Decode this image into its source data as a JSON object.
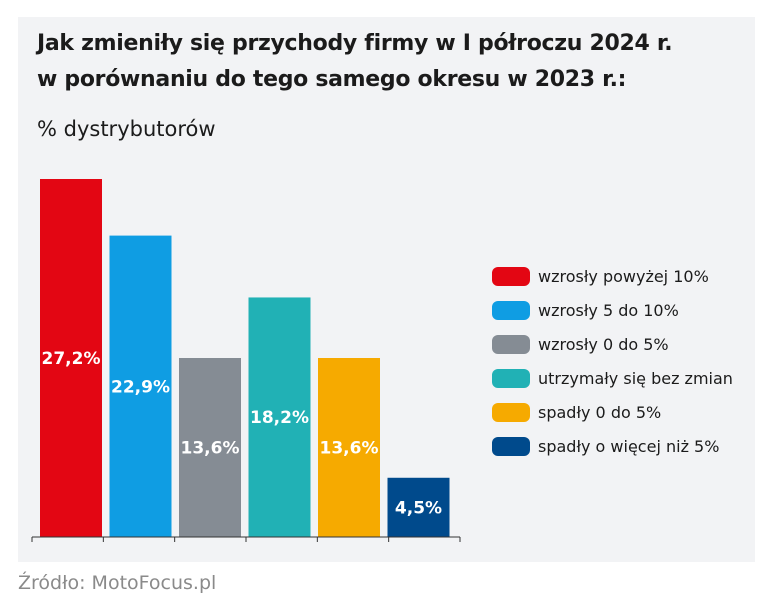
{
  "title_lines": [
    "Jak zmieniły się przychody firmy w I półroczu 2024 r.",
    "w porównaniu do tego samego okresu w 2023 r.:"
  ],
  "subtitle": "% dystrybutorów",
  "source": "Źródło: MotoFocus.pl",
  "chart_data": {
    "type": "bar",
    "categories": [
      "wzrosły powyżej 10%",
      "wzrosły 5 do 10%",
      "wzrosły 0 do 5%",
      "utrzymały się bez zmian",
      "spadły 0 do 5%",
      "spadły o więcej niż 5%"
    ],
    "values": [
      27.2,
      22.9,
      13.6,
      18.2,
      13.6,
      4.5
    ],
    "data_labels": [
      "27,2%",
      "22,9%",
      "13,6%",
      "18,2%",
      "13,6%",
      "4,5%"
    ],
    "colors": [
      "#e30613",
      "#0f9de3",
      "#858c94",
      "#21b1b5",
      "#f6aa00",
      "#004a8c"
    ],
    "legend_position": "right",
    "grid": false
  },
  "legend": [
    {
      "label": "wzrosły powyżej 10%",
      "color": "#e30613"
    },
    {
      "label": "wzrosły 5 do 10%",
      "color": "#0f9de3"
    },
    {
      "label": "wzrosły 0 do 5%",
      "color": "#858c94"
    },
    {
      "label": "utrzymały się bez zmian",
      "color": "#21b1b5"
    },
    {
      "label": "spadły 0 do 5%",
      "color": "#f6aa00"
    },
    {
      "label": "spadły o więcej niż 5%",
      "color": "#004a8c"
    }
  ]
}
